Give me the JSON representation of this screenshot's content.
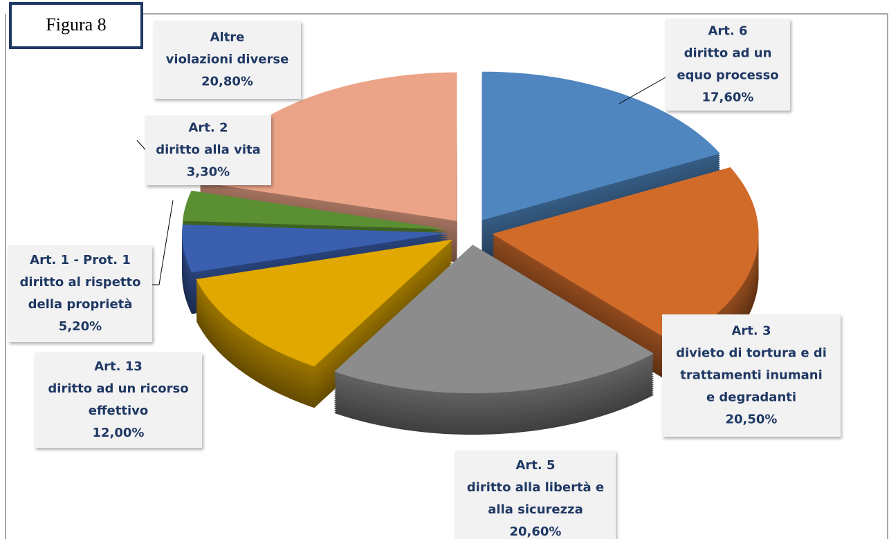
{
  "chart_data": {
    "type": "pie",
    "caption": "Figura 8",
    "categories": [
      [
        "Art. 6",
        "diritto ad un",
        "equo processo"
      ],
      [
        "Art. 3",
        "divieto di tortura e di",
        "trattamenti inumani",
        "e degradanti"
      ],
      [
        "Art. 5",
        "diritto alla libertà e",
        "alla sicurezza"
      ],
      [
        "Art. 13",
        "diritto ad un ricorso",
        "effettivo"
      ],
      [
        "Art. 1 - Prot. 1",
        "diritto al rispetto",
        "della proprietà"
      ],
      [
        "Art. 2",
        "diritto alla vita"
      ],
      [
        "Altre",
        "violazioni diverse"
      ]
    ],
    "values": [
      17.6,
      20.5,
      20.6,
      12.0,
      5.2,
      3.3,
      20.8
    ],
    "value_labels": [
      "17,60%",
      "20,50%",
      "20,60%",
      "12,00%",
      "5,20%",
      "3,30%",
      "20,80%"
    ],
    "colors": [
      "#4f86bf",
      "#d06b2a",
      "#8c8c8c",
      "#e0a800",
      "#3a5fae",
      "#5a8f32",
      "#eba488"
    ]
  }
}
